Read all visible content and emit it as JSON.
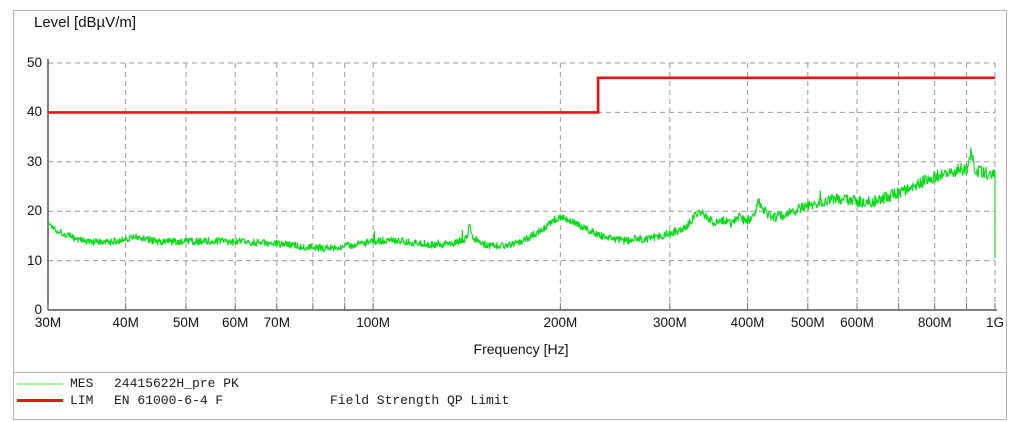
{
  "chart_data": {
    "type": "line",
    "title": "Level [dBµV/m]",
    "xlabel": "Frequency [Hz]",
    "ylabel": "Level [dBµV/m]",
    "x_scale": "log",
    "x_range_mhz": [
      30,
      1000
    ],
    "ylim": [
      0,
      50
    ],
    "y_ticks": [
      0,
      10,
      20,
      30,
      40,
      50
    ],
    "grid": "dashed",
    "legend_position": "bottom",
    "x_ticks": [
      {
        "mhz": 30,
        "label": "30M"
      },
      {
        "mhz": 40,
        "label": "40M"
      },
      {
        "mhz": 50,
        "label": "50M"
      },
      {
        "mhz": 60,
        "label": "60M"
      },
      {
        "mhz": 70,
        "label": "70M"
      },
      {
        "mhz": 80,
        "label": ""
      },
      {
        "mhz": 90,
        "label": ""
      },
      {
        "mhz": 100,
        "label": "100M"
      },
      {
        "mhz": 200,
        "label": "200M"
      },
      {
        "mhz": 300,
        "label": "300M"
      },
      {
        "mhz": 400,
        "label": "400M"
      },
      {
        "mhz": 500,
        "label": "500M"
      },
      {
        "mhz": 600,
        "label": "600M"
      },
      {
        "mhz": 700,
        "label": ""
      },
      {
        "mhz": 800,
        "label": "800M"
      },
      {
        "mhz": 900,
        "label": ""
      },
      {
        "mhz": 1000,
        "label": "1G"
      }
    ],
    "colors": {
      "measurement_trace": "#00dd11",
      "limit_line": "#ee1111",
      "grid": "#9a9a9a",
      "axis": "#555555"
    },
    "series": [
      {
        "name": "MES",
        "label": "24415622H_pre PK",
        "kind": "noisy-peak-trace",
        "color": "#00dd11",
        "noise_db": [
          0.75,
          1.25
        ],
        "spikes_mhz_db": [
          [
            143,
            2.2
          ],
          [
            417,
            1.2
          ],
          [
            915,
            3.0
          ]
        ],
        "end_drop_db": 10.5,
        "anchors_mhz_db": [
          [
            30,
            17.6
          ],
          [
            31,
            16.2
          ],
          [
            32,
            15.3
          ],
          [
            33.5,
            14.3
          ],
          [
            35,
            13.8
          ],
          [
            37,
            13.6
          ],
          [
            39,
            14.1
          ],
          [
            41,
            14.8
          ],
          [
            43,
            14.4
          ],
          [
            45,
            13.9
          ],
          [
            48,
            13.8
          ],
          [
            52,
            13.9
          ],
          [
            56,
            14.0
          ],
          [
            60,
            13.8
          ],
          [
            64,
            13.7
          ],
          [
            68,
            13.5
          ],
          [
            72,
            13.3
          ],
          [
            76,
            13.0
          ],
          [
            80,
            12.7
          ],
          [
            84,
            12.5
          ],
          [
            88,
            12.8
          ],
          [
            92,
            13.1
          ],
          [
            96,
            13.5
          ],
          [
            100,
            13.8
          ],
          [
            105,
            14.2
          ],
          [
            110,
            14.0
          ],
          [
            118,
            13.5
          ],
          [
            126,
            13.2
          ],
          [
            134,
            13.5
          ],
          [
            140,
            14.3
          ],
          [
            144,
            14.8
          ],
          [
            148,
            13.8
          ],
          [
            153,
            13.0
          ],
          [
            158,
            12.9
          ],
          [
            164,
            13.2
          ],
          [
            172,
            13.8
          ],
          [
            180,
            15.0
          ],
          [
            188,
            16.6
          ],
          [
            196,
            18.4
          ],
          [
            202,
            18.9
          ],
          [
            208,
            18.0
          ],
          [
            215,
            17.0
          ],
          [
            222,
            16.2
          ],
          [
            230,
            15.2
          ],
          [
            242,
            14.4
          ],
          [
            255,
            14.0
          ],
          [
            265,
            14.6
          ],
          [
            272,
            14.3
          ],
          [
            282,
            14.8
          ],
          [
            295,
            15.2
          ],
          [
            308,
            16.0
          ],
          [
            320,
            17.2
          ],
          [
            330,
            19.3
          ],
          [
            337,
            19.9
          ],
          [
            345,
            18.6
          ],
          [
            355,
            17.6
          ],
          [
            362,
            18.4
          ],
          [
            370,
            17.8
          ],
          [
            378,
            17.6
          ],
          [
            388,
            19.0
          ],
          [
            395,
            18.0
          ],
          [
            402,
            18.4
          ],
          [
            410,
            19.6
          ],
          [
            417,
            21.0
          ],
          [
            424,
            20.4
          ],
          [
            432,
            19.2
          ],
          [
            442,
            18.7
          ],
          [
            452,
            19.0
          ],
          [
            465,
            19.5
          ],
          [
            478,
            20.2
          ],
          [
            492,
            20.8
          ],
          [
            505,
            21.3
          ],
          [
            520,
            21.8
          ],
          [
            540,
            22.3
          ],
          [
            560,
            22.5
          ],
          [
            580,
            22.3
          ],
          [
            600,
            22.0
          ],
          [
            620,
            21.8
          ],
          [
            645,
            22.1
          ],
          [
            670,
            22.8
          ],
          [
            700,
            23.8
          ],
          [
            730,
            24.8
          ],
          [
            760,
            25.8
          ],
          [
            790,
            26.7
          ],
          [
            820,
            27.4
          ],
          [
            850,
            27.9
          ],
          [
            880,
            28.4
          ],
          [
            905,
            28.7
          ],
          [
            920,
            28.9
          ],
          [
            935,
            28.3
          ],
          [
            955,
            27.9
          ],
          [
            975,
            27.6
          ],
          [
            1000,
            27.2
          ]
        ]
      },
      {
        "name": "LIM",
        "label": "EN 61000-6-4 F",
        "comment": "Field Strength QP Limit",
        "kind": "limit-step",
        "color": "#ee1111",
        "step_points_mhz_db": [
          [
            30,
            40
          ],
          [
            230,
            40
          ],
          [
            230,
            47
          ],
          [
            1000,
            47
          ]
        ]
      }
    ]
  },
  "legend": {
    "items": [
      {
        "name": "MES",
        "label": "24415622H_pre PK",
        "comment": "",
        "swatch_color": "#a8efa8"
      },
      {
        "name": "LIM",
        "label": "EN 61000-6-4 F",
        "comment": "Field Strength QP Limit",
        "swatch_color": "#ee1111"
      }
    ]
  }
}
